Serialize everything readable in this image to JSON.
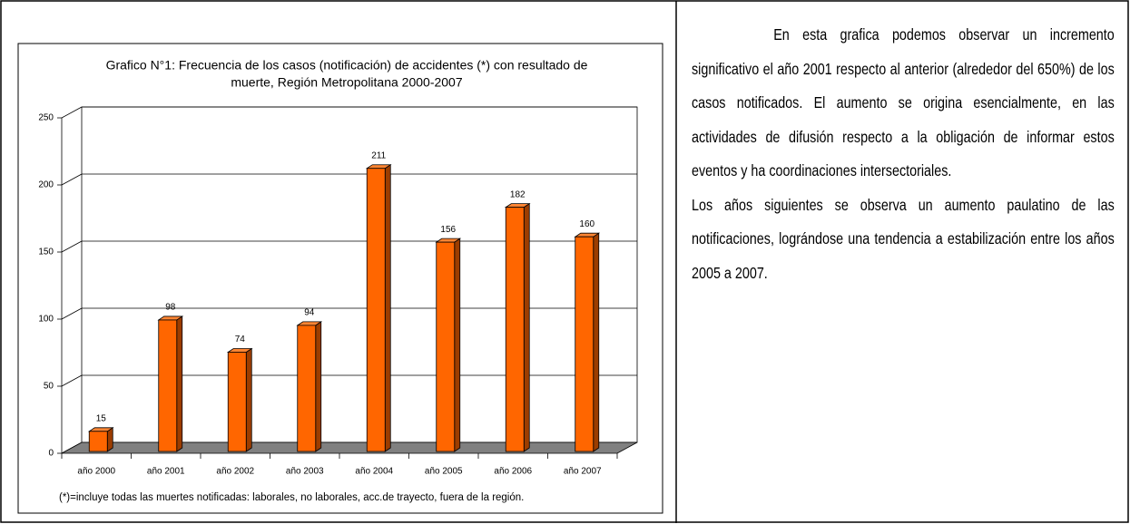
{
  "chart_data": {
    "type": "bar",
    "title": [
      "Grafico N°1: Frecuencia de los casos (notificación) de accidentes (*) con resultado de",
      "muerte, Región Metropolitana  2000-2007"
    ],
    "categories": [
      "año 2000",
      "año 2001",
      "año 2002",
      "año 2003",
      "año 2004",
      "año 2005",
      "año 2006",
      "año 2007"
    ],
    "values": [
      15,
      98,
      74,
      94,
      211,
      156,
      182,
      160
    ],
    "color": "#ff6600",
    "ylim": [
      0,
      250
    ],
    "yticks": [
      0,
      50,
      100,
      150,
      200,
      250
    ],
    "grid": true,
    "note": "(*)=incluye todas las muertes notificadas: laborales, no laborales, acc.de trayecto, fuera de la región."
  },
  "paragraphs": [
    "En esta grafica podemos observar un incremento significativo el año 2001 respecto al anterior (alrededor del 650%) de los casos notificados. El aumento se origina esencialmente,  en las actividades de difusión respecto a la obligación de informar estos eventos y ha coordinaciones intersectoriales.",
    "Los años siguientes se  observa un aumento paulatino de las notificaciones, lográndose una tendencia a estabilización entre los años 2005 a 2007."
  ]
}
